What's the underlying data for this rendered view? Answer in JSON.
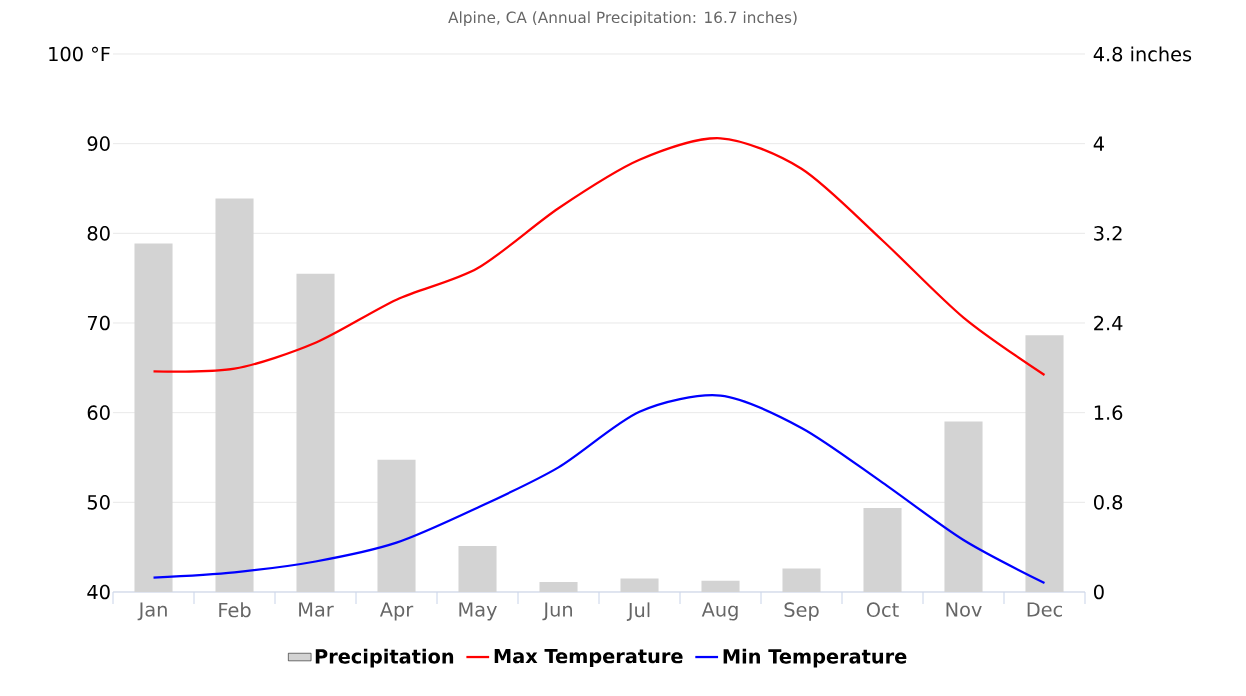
{
  "chart_data": {
    "type": "bar",
    "title": "Alpine, CA (Annual Precipitation: 16.7 inches)",
    "categories": [
      "Jan",
      "Feb",
      "Mar",
      "Apr",
      "May",
      "Jun",
      "Jul",
      "Aug",
      "Sep",
      "Oct",
      "Nov",
      "Dec"
    ],
    "series": [
      {
        "name": "Precipitation",
        "axis": "y2",
        "color": "#d3d3d3",
        "values": [
          3.11,
          3.51,
          2.84,
          1.18,
          0.41,
          0.09,
          0.12,
          0.1,
          0.21,
          0.75,
          1.52,
          2.29
        ]
      },
      {
        "name": "Max Temperature",
        "type": "line",
        "color": "#ff0000",
        "values": [
          64.6,
          64.9,
          67.8,
          72.6,
          76.1,
          82.8,
          88.2,
          90.6,
          87.2,
          79.2,
          70.6,
          64.2
        ]
      },
      {
        "name": "Min Temperature",
        "type": "line",
        "color": "#0000ff",
        "values": [
          41.6,
          42.2,
          43.4,
          45.5,
          49.4,
          53.9,
          60.1,
          61.9,
          58.3,
          52.2,
          45.8,
          41.0
        ]
      }
    ],
    "ylim": [
      40,
      100
    ],
    "yticks": [
      40,
      50,
      60,
      70,
      80,
      90,
      {
        "value": 100,
        "label": "100 °F"
      }
    ],
    "y2lim": [
      0,
      4.8
    ],
    "y2ticks": [
      0,
      0.8,
      1.6,
      2.4,
      3.2,
      4,
      {
        "value": 4.8,
        "label": "4.8 inches"
      }
    ],
    "grid": "y",
    "legend": "bottom",
    "marker": "none",
    "line_style": "solid"
  }
}
